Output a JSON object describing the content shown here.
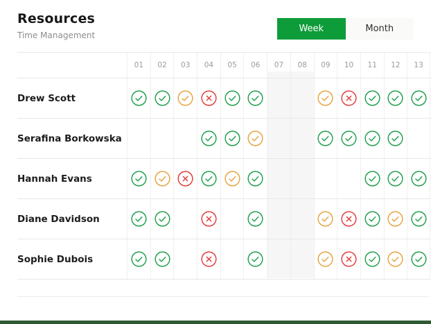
{
  "header": {
    "title": "Resources",
    "subtitle": "Time Management"
  },
  "toggle": {
    "week_label": "Week",
    "month_label": "Month",
    "active": "Week"
  },
  "colors": {
    "toggle_active_bg": "#0e9c3a",
    "icon_green": "#1d9f4b",
    "icon_orange": "#e6a33d",
    "icon_red": "#e23a3a",
    "weekend_bg": "#f6f6f6",
    "footer_bar": "#2e5a33"
  },
  "table": {
    "day_columns": [
      "01",
      "02",
      "03",
      "04",
      "05",
      "06",
      "07",
      "08",
      "09",
      "10",
      "11",
      "12",
      "13"
    ],
    "weekend_columns": [
      "07",
      "08"
    ],
    "rows": [
      {
        "name": "Drew Scott",
        "cells": [
          "green-check",
          "green-check",
          "orange-check",
          "red-x",
          "green-check",
          "green-check",
          null,
          null,
          "orange-check",
          "red-x",
          "green-check",
          "green-check",
          "green-check"
        ]
      },
      {
        "name": "Serafina Borkowska",
        "cells": [
          null,
          null,
          null,
          "green-check",
          "green-check",
          "orange-check",
          null,
          null,
          "green-check",
          "green-check",
          "green-check",
          "green-check",
          null
        ]
      },
      {
        "name": "Hannah Evans",
        "cells": [
          "green-check",
          "orange-check",
          "red-x",
          "green-check",
          "orange-check",
          "green-check",
          null,
          null,
          null,
          null,
          "green-check",
          "green-check",
          "green-check"
        ]
      },
      {
        "name": "Diane Davidson",
        "cells": [
          "green-check",
          "green-check",
          null,
          "red-x",
          null,
          "green-check",
          null,
          null,
          "orange-check",
          "red-x",
          "green-check",
          "orange-check",
          "green-check"
        ]
      },
      {
        "name": "Sophie Dubois",
        "cells": [
          "green-check",
          "green-check",
          null,
          "red-x",
          null,
          "green-check",
          null,
          null,
          "orange-check",
          "red-x",
          "green-check",
          "orange-check",
          "green-check"
        ]
      }
    ]
  }
}
